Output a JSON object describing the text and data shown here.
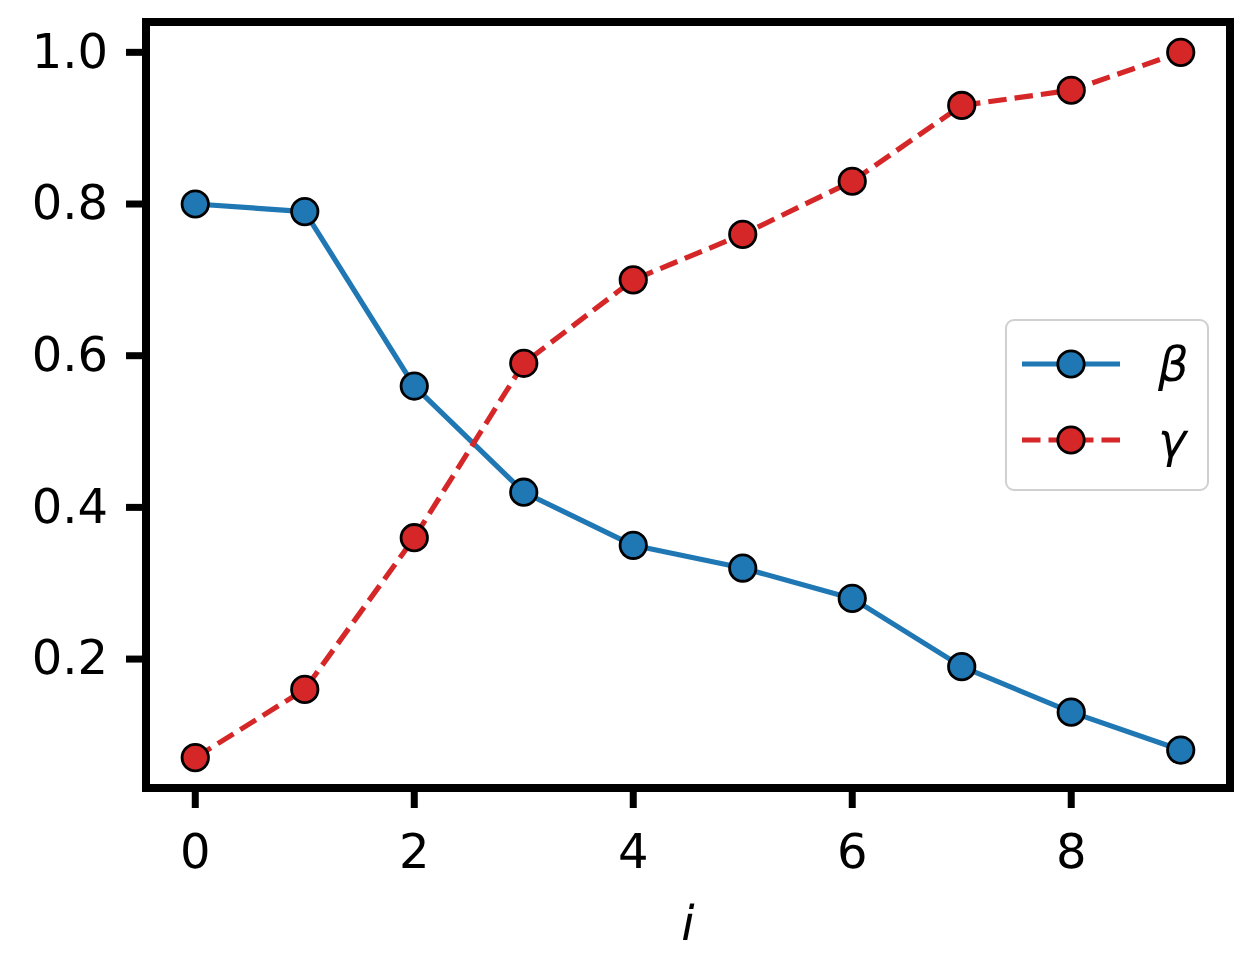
{
  "chart_data": {
    "type": "line",
    "xlabel": "i",
    "x": [
      0,
      1,
      2,
      3,
      4,
      5,
      6,
      7,
      8,
      9
    ],
    "series": [
      {
        "name": "β",
        "color": "#1f77b4",
        "line_style": "solid",
        "values": [
          0.8,
          0.79,
          0.56,
          0.42,
          0.35,
          0.32,
          0.28,
          0.19,
          0.13,
          0.08
        ]
      },
      {
        "name": "γ",
        "color": "#d62728",
        "line_style": "dashed",
        "values": [
          0.07,
          0.16,
          0.36,
          0.59,
          0.7,
          0.76,
          0.83,
          0.93,
          0.95,
          1.0
        ]
      }
    ],
    "xlim": [
      -0.45,
      9.45
    ],
    "xticks": [
      0,
      2,
      4,
      6,
      8
    ],
    "ylim": [
      0.03,
      1.04
    ],
    "yticks": [
      {
        "value": 0.2,
        "label": "0.2"
      },
      {
        "value": 0.4,
        "label": "0.4"
      },
      {
        "value": 0.6,
        "label": "0.6"
      },
      {
        "value": 0.8,
        "label": "0.8"
      },
      {
        "value": 1.0,
        "label": "1.0"
      }
    ],
    "marker": "circle",
    "legend": "right"
  }
}
